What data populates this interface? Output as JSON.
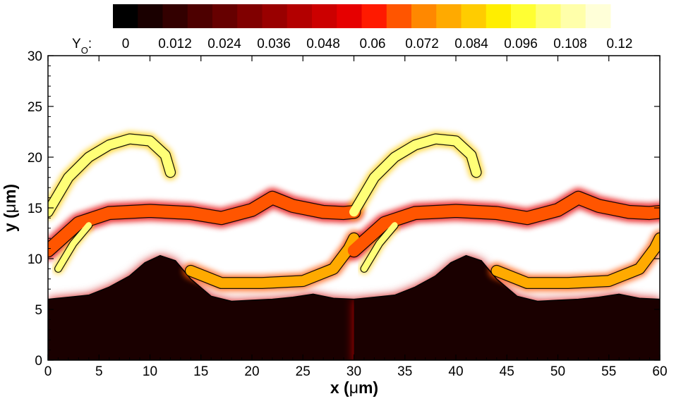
{
  "chart_data": {
    "type": "heatmap",
    "title": "",
    "colorbar": {
      "variable": "Y",
      "subscript": "O",
      "suffix": ":",
      "placement": "top",
      "range": [
        0,
        0.12
      ],
      "tick_labels": [
        "0",
        "0.012",
        "0.024",
        "0.036",
        "0.048",
        "0.06",
        "0.072",
        "0.084",
        "0.096",
        "0.108",
        "0.12"
      ],
      "colors": [
        "#000000",
        "#1a0000",
        "#330000",
        "#4d0000",
        "#660000",
        "#800000",
        "#990000",
        "#b30000",
        "#cc0000",
        "#e60000",
        "#ff1a00",
        "#ff5500",
        "#ff8800",
        "#ffaa00",
        "#ffcc00",
        "#ffee00",
        "#ffff33",
        "#ffff77",
        "#ffffaa",
        "#ffffd8"
      ]
    },
    "x_axis": {
      "label_prefix": "x (",
      "label_mu": "μ",
      "label_suffix": "m)",
      "range": [
        0,
        60
      ],
      "ticks": [
        0,
        5,
        10,
        15,
        20,
        25,
        30,
        35,
        40,
        45,
        50,
        55,
        60
      ]
    },
    "y_axis": {
      "label_prefix": "y (",
      "label_mu": "μ",
      "label_suffix": "m)",
      "range": [
        0,
        30
      ],
      "ticks": [
        0,
        5,
        10,
        15,
        20,
        25,
        30
      ]
    },
    "field": {
      "period_x": 30,
      "lower_layer_surface": [
        [
          0,
          6.0
        ],
        [
          2,
          6.2
        ],
        [
          4,
          6.4
        ],
        [
          6,
          7.2
        ],
        [
          8,
          8.3
        ],
        [
          9.5,
          9.6
        ],
        [
          11,
          10.3
        ],
        [
          12.5,
          9.8
        ],
        [
          14,
          8.0
        ],
        [
          16,
          6.3
        ],
        [
          18,
          5.8
        ],
        [
          20,
          5.9
        ],
        [
          22,
          6.0
        ],
        [
          24,
          6.2
        ],
        [
          26,
          6.5
        ],
        [
          28,
          6.1
        ],
        [
          30,
          6.0
        ]
      ],
      "bright_bands": [
        {
          "name": "band-upper",
          "points": [
            [
              0,
              10.8
            ],
            [
              3,
              13.5
            ],
            [
              6,
              14.5
            ],
            [
              10,
              14.7
            ],
            [
              14,
              14.5
            ],
            [
              17,
              14.0
            ],
            [
              20,
              14.8
            ],
            [
              22,
              16.0
            ],
            [
              24,
              15.2
            ],
            [
              27,
              14.6
            ],
            [
              29,
              14.5
            ],
            [
              30,
              14.6
            ]
          ],
          "width": 1.2,
          "value": 0.07
        },
        {
          "name": "band-lower",
          "points": [
            [
              14,
              8.8
            ],
            [
              17,
              7.6
            ],
            [
              21,
              7.6
            ],
            [
              25,
              7.8
            ],
            [
              28,
              9.0
            ],
            [
              29.5,
              11.0
            ],
            [
              30,
              12.0
            ]
          ],
          "width": 1.0,
          "value": 0.085
        },
        {
          "name": "band-finger",
          "points": [
            [
              0,
              14.6
            ],
            [
              2,
              18.0
            ],
            [
              4,
              20.0
            ],
            [
              6,
              21.2
            ],
            [
              8,
              21.8
            ],
            [
              10,
              21.6
            ],
            [
              11.5,
              20.2
            ],
            [
              12,
              18.5
            ]
          ],
          "width": 0.9,
          "value": 0.11
        },
        {
          "name": "band-blob",
          "points": [
            [
              1,
              9.0
            ],
            [
              2.5,
              11.5
            ],
            [
              4,
              13.3
            ]
          ],
          "width": 0.6,
          "value": 0.11
        }
      ]
    }
  }
}
